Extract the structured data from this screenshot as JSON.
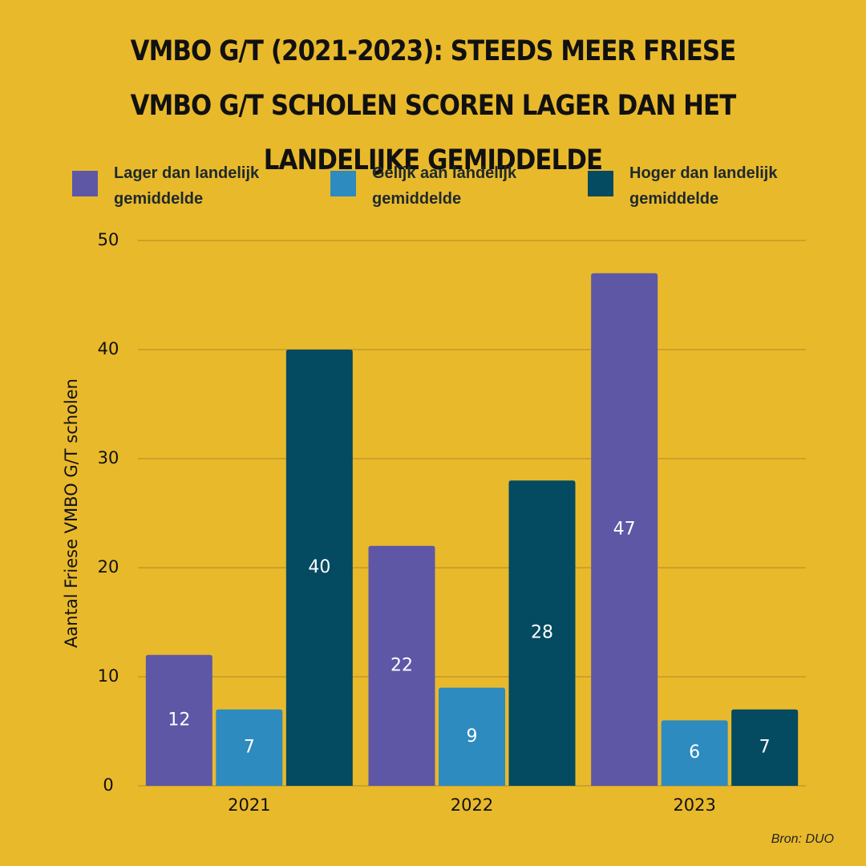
{
  "chart_data": {
    "type": "bar",
    "title": "VMBO G/T (2021-2023): STEEDS MEER FRIESE VMBO G/T SCHOLEN SCOREN LAGER DAN HET LANDELIJKE GEMIDDELDE",
    "y_label": "Aantal Friese VMBO G/T scholen",
    "source": "Bron: DUO",
    "categories": [
      "2021",
      "2022",
      "2023"
    ],
    "series": [
      {
        "name": "Lager dan landelijk gemiddelde",
        "color": "#5e57a6",
        "values": [
          12,
          22,
          47
        ]
      },
      {
        "name": "Gelijk aan landelijk gemiddelde",
        "color": "#2e8bbf",
        "values": [
          7,
          9,
          6
        ]
      },
      {
        "name": "Hoger dan landelijk gemiddelde",
        "color": "#044a60",
        "values": [
          40,
          28,
          7
        ]
      }
    ],
    "ylim": [
      0,
      50
    ],
    "yticks": [
      0,
      10,
      20,
      30,
      40,
      50
    ],
    "grid": true
  }
}
